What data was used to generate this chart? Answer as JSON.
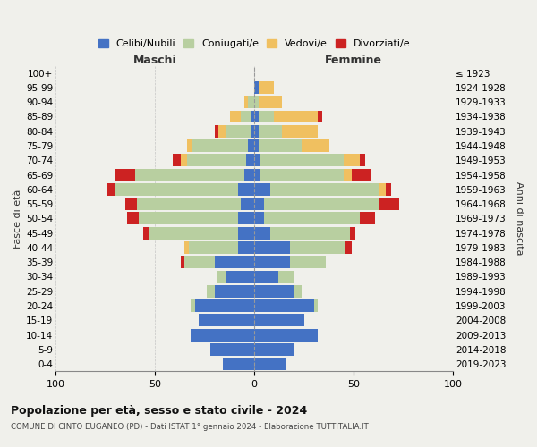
{
  "age_groups": [
    "0-4",
    "5-9",
    "10-14",
    "15-19",
    "20-24",
    "25-29",
    "30-34",
    "35-39",
    "40-44",
    "45-49",
    "50-54",
    "55-59",
    "60-64",
    "65-69",
    "70-74",
    "75-79",
    "80-84",
    "85-89",
    "90-94",
    "95-99",
    "100+"
  ],
  "birth_years": [
    "2019-2023",
    "2014-2018",
    "2009-2013",
    "2004-2008",
    "1999-2003",
    "1994-1998",
    "1989-1993",
    "1984-1988",
    "1979-1983",
    "1974-1978",
    "1969-1973",
    "1964-1968",
    "1959-1963",
    "1954-1958",
    "1949-1953",
    "1944-1948",
    "1939-1943",
    "1934-1938",
    "1929-1933",
    "1924-1928",
    "≤ 1923"
  ],
  "male": {
    "celibi": [
      16,
      22,
      32,
      28,
      30,
      20,
      14,
      20,
      8,
      8,
      8,
      7,
      8,
      5,
      4,
      3,
      2,
      2,
      0,
      0,
      0
    ],
    "coniugati": [
      0,
      0,
      0,
      0,
      2,
      4,
      5,
      15,
      25,
      45,
      50,
      52,
      62,
      55,
      30,
      28,
      12,
      5,
      3,
      0,
      0
    ],
    "vedovi": [
      0,
      0,
      0,
      0,
      0,
      0,
      0,
      0,
      2,
      0,
      0,
      0,
      0,
      0,
      3,
      3,
      4,
      5,
      2,
      0,
      0
    ],
    "divorziati": [
      0,
      0,
      0,
      0,
      0,
      0,
      0,
      2,
      0,
      3,
      6,
      6,
      4,
      10,
      4,
      0,
      2,
      0,
      0,
      0,
      0
    ]
  },
  "female": {
    "nubili": [
      16,
      20,
      32,
      25,
      30,
      20,
      12,
      18,
      18,
      8,
      5,
      5,
      8,
      3,
      3,
      2,
      2,
      2,
      0,
      2,
      0
    ],
    "coniugate": [
      0,
      0,
      0,
      0,
      2,
      4,
      8,
      18,
      28,
      40,
      48,
      58,
      55,
      42,
      42,
      22,
      12,
      8,
      2,
      0,
      0
    ],
    "vedove": [
      0,
      0,
      0,
      0,
      0,
      0,
      0,
      0,
      0,
      0,
      0,
      0,
      3,
      4,
      8,
      14,
      18,
      22,
      12,
      8,
      0
    ],
    "divorziate": [
      0,
      0,
      0,
      0,
      0,
      0,
      0,
      0,
      3,
      3,
      8,
      10,
      3,
      10,
      3,
      0,
      0,
      2,
      0,
      0,
      0
    ]
  },
  "colors": {
    "celibi": "#4472c4",
    "coniugati": "#b8cfa0",
    "vedovi": "#f0c060",
    "divorziati": "#cc2222"
  },
  "title": "Popolazione per età, sesso e stato civile - 2024",
  "subtitle": "COMUNE DI CINTO EUGANEO (PD) - Dati ISTAT 1° gennaio 2024 - Elaborazione TUTTITALIA.IT",
  "xlabel_left": "Maschi",
  "xlabel_right": "Femmine",
  "ylabel_left": "Fasce di età",
  "ylabel_right": "Anni di nascita",
  "xlim": 100,
  "legend_labels": [
    "Celibi/Nubili",
    "Coniugati/e",
    "Vedovi/e",
    "Divorziati/e"
  ],
  "bg_color": "#f0f0eb"
}
